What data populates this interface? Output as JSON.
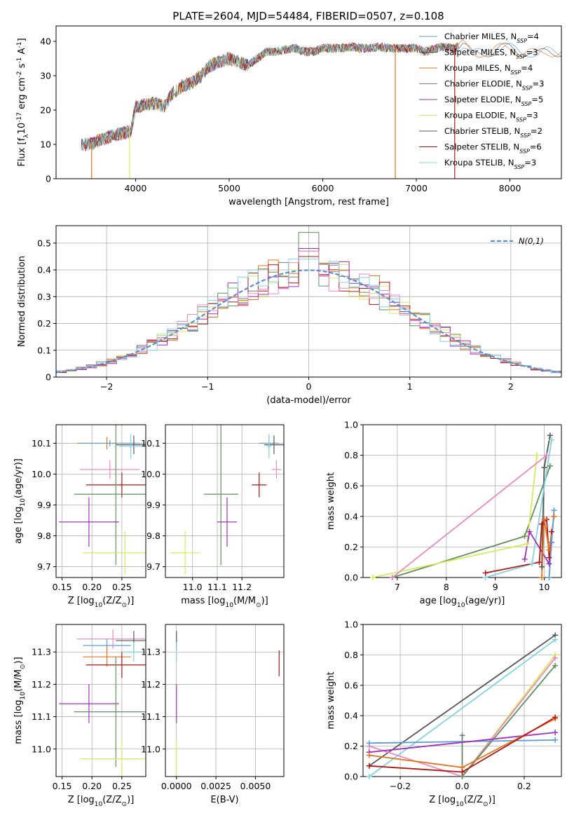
{
  "figure_title": "PLATE=2604, MJD=54484, FIBERID=0507, z=0.108",
  "colors": {
    "Chabrier MILES": "#5b9bd5",
    "Salpeter MILES": "#555555",
    "Kroupa MILES": "#e6731c",
    "Chabrier ELODIE": "#5f8f5f",
    "Salpeter ELODIE": "#a12fbf",
    "Kroupa ELODIE": "#d8ea5a",
    "Chabrier STELIB": "#555555",
    "Salpeter STELIB": "#b31616",
    "Kroupa STELIB": "#7fd4e0",
    "extra": "#e88bc0",
    "gauss": "#5b8fd6"
  },
  "chart_data": [
    {
      "type": "line",
      "xlabel": "wavelength [Angstrom, rest frame]",
      "ylabel": "Flux [f$_\\lambda$10$^{-17}$ erg cm$^{-2}$ s$^{-1}$ A$^{-1}$]",
      "xlim": [
        3150,
        8550
      ],
      "ylim": [
        0,
        44.5
      ],
      "xticks": [
        4000,
        5000,
        6000,
        7000,
        8000
      ],
      "yticks": [
        0,
        10,
        20,
        30,
        40
      ],
      "legend_location": "upper right",
      "legend": [
        {
          "name": "Chabrier MILES",
          "label": "Chabrier MILES, N",
          "sub": "SSP",
          "tail": "=4"
        },
        {
          "name": "Salpeter MILES",
          "label": "Salpeter MILES, N",
          "sub": "SSP",
          "tail": "=3"
        },
        {
          "name": "Kroupa MILES",
          "label": "Kroupa MILES, N",
          "sub": "SSP",
          "tail": "=4"
        },
        {
          "name": "Chabrier ELODIE",
          "label": "Chabrier ELODIE, N",
          "sub": "SSP",
          "tail": "=3"
        },
        {
          "name": "Salpeter ELODIE",
          "label": "Salpeter ELODIE, N",
          "sub": "SSP",
          "tail": "=5"
        },
        {
          "name": "Kroupa ELODIE",
          "label": "Kroupa ELODIE, N",
          "sub": "SSP",
          "tail": "=3"
        },
        {
          "name": "Chabrier STELIB",
          "label": "Chabrier STELIB, N",
          "sub": "SSP",
          "tail": "=2"
        },
        {
          "name": "Salpeter STELIB",
          "label": "Salpeter STELIB, N",
          "sub": "SSP",
          "tail": "=6"
        },
        {
          "name": "Kroupa STELIB",
          "label": "Kroupa STELIB, N",
          "sub": "SSP",
          "tail": "=3"
        }
      ],
      "continuum": [
        [
          3420,
          10
        ],
        [
          3500,
          10
        ],
        [
          3600,
          11
        ],
        [
          3700,
          12
        ],
        [
          3800,
          13
        ],
        [
          3900,
          13.5
        ],
        [
          3950,
          14
        ],
        [
          4000,
          21
        ],
        [
          4100,
          21.5
        ],
        [
          4200,
          22
        ],
        [
          4300,
          21
        ],
        [
          4400,
          25
        ],
        [
          4500,
          27
        ],
        [
          4600,
          28
        ],
        [
          4700,
          30
        ],
        [
          4800,
          33
        ],
        [
          4900,
          34
        ],
        [
          5000,
          35
        ],
        [
          5100,
          34
        ],
        [
          5200,
          33
        ],
        [
          5300,
          35
        ],
        [
          5400,
          37
        ],
        [
          5500,
          37
        ],
        [
          5600,
          37.5
        ],
        [
          5700,
          38
        ],
        [
          5800,
          37
        ],
        [
          5900,
          37
        ],
        [
          6000,
          38
        ],
        [
          6100,
          38
        ],
        [
          6200,
          38
        ],
        [
          6300,
          38.5
        ],
        [
          6400,
          38
        ],
        [
          6500,
          38
        ],
        [
          6600,
          38.5
        ],
        [
          6700,
          38
        ],
        [
          6800,
          38
        ],
        [
          6900,
          38
        ],
        [
          7000,
          38
        ],
        [
          7100,
          37
        ],
        [
          7200,
          38
        ],
        [
          7300,
          38.5
        ],
        [
          7400,
          38
        ],
        [
          7500,
          39
        ],
        [
          7600,
          36
        ],
        [
          7700,
          37
        ],
        [
          7800,
          37
        ],
        [
          7900,
          38
        ],
        [
          8000,
          38
        ],
        [
          8100,
          37
        ],
        [
          8200,
          37
        ],
        [
          8300,
          36
        ],
        [
          8400,
          37
        ],
        [
          8550,
          37
        ]
      ],
      "model_cut": 7430,
      "dips": [
        {
          "series": "Kroupa MILES",
          "x": 3530
        },
        {
          "series": "Kroupa ELODIE",
          "x": 3935
        },
        {
          "series": "Kroupa MILES",
          "x": 6775
        },
        {
          "series": "Salpeter STELIB",
          "x": 7410
        }
      ]
    },
    {
      "type": "step",
      "xlabel": "(data-model)/error",
      "ylabel": "Normed distribution",
      "xlim": [
        -2.5,
        2.5
      ],
      "ylim": [
        0,
        0.565
      ],
      "xticks": [
        -2,
        -1,
        0,
        1,
        2
      ],
      "yticks": [
        0.0,
        0.1,
        0.2,
        0.3,
        0.4,
        0.5
      ],
      "bin_width": 0.1,
      "legend_location": "upper right",
      "gauss_label": "N(0,1)",
      "series": [
        {
          "name": "Chabrier ELODIE",
          "peak": 0.54,
          "noise_seed": 3
        },
        {
          "name": "Kroupa MILES",
          "peak": 0.47,
          "noise_seed": 7
        },
        {
          "name": "Kroupa ELODIE",
          "peak": 0.45,
          "noise_seed": 11
        },
        {
          "name": "Salpeter ELODIE",
          "peak": 0.48,
          "noise_seed": 13
        },
        {
          "name": "Salpeter STELIB",
          "peak": 0.45,
          "noise_seed": 17
        },
        {
          "name": "extra",
          "peak": 0.47,
          "noise_seed": 19
        },
        {
          "name": "Kroupa STELIB",
          "peak": 0.44,
          "noise_seed": 23
        }
      ]
    },
    {
      "type": "errorbar",
      "xlabel": "Z [log$_{10}$(Z/Z$_\\odot$)]",
      "ylabel": "age  [log$_{10}$(age/yr)]",
      "xlim": [
        0.14,
        0.29
      ],
      "ylim": [
        9.665,
        10.16
      ],
      "xticks": [
        0.15,
        0.2,
        0.25
      ],
      "yticks": [
        9.7,
        9.8,
        9.9,
        10.0,
        10.1
      ],
      "points": [
        {
          "series": "Kroupa MILES",
          "x": 0.225,
          "y": 10.1,
          "ex": 0.05,
          "ey": 0.02
        },
        {
          "series": "Chabrier MILES",
          "x": 0.23,
          "y": 10.1,
          "ex": 0.05,
          "ey": 0.01
        },
        {
          "series": "Salpeter MILES",
          "x": 0.27,
          "y": 10.095,
          "ex": 0.03,
          "ey": 0.03
        },
        {
          "series": "Kroupa STELIB",
          "x": 0.265,
          "y": 10.09,
          "ex": 0.02,
          "ey": 0.04
        },
        {
          "series": "extra",
          "x": 0.23,
          "y": 10.015,
          "ex": 0.05,
          "ey": 0.03
        },
        {
          "series": "Salpeter STELIB",
          "x": 0.25,
          "y": 9.965,
          "ex": 0.06,
          "ey": 0.04
        },
        {
          "series": "Chabrier ELODIE",
          "x": 0.24,
          "y": 9.935,
          "ex": 0.07,
          "ey": 0.23
        },
        {
          "series": "Salpeter ELODIE",
          "x": 0.195,
          "y": 9.845,
          "ex": 0.05,
          "ey": 0.08
        },
        {
          "series": "Kroupa ELODIE",
          "x": 0.255,
          "y": 9.745,
          "ex": 0.07,
          "ey": 0.07
        }
      ]
    },
    {
      "type": "errorbar",
      "xlabel": "mass [log$_{10}$(M/M$_\\odot$)]",
      "ylabel": "",
      "xlim": [
        10.89,
        11.37
      ],
      "ylim": [
        9.665,
        10.16
      ],
      "xticks": [
        11.0,
        11.1,
        11.2
      ],
      "yticks": [
        9.7,
        9.8,
        9.9,
        10.0,
        10.1
      ],
      "points": [
        {
          "series": "Kroupa MILES",
          "x": 11.31,
          "y": 10.1,
          "ex": 0.04,
          "ey": 0.02
        },
        {
          "series": "Chabrier MILES",
          "x": 11.31,
          "y": 10.1,
          "ex": 0.04,
          "ey": 0.01
        },
        {
          "series": "Salpeter MILES",
          "x": 11.33,
          "y": 10.095,
          "ex": 0.04,
          "ey": 0.03
        },
        {
          "series": "Kroupa STELIB",
          "x": 11.31,
          "y": 10.09,
          "ex": 0.01,
          "ey": 0.04
        },
        {
          "series": "extra",
          "x": 11.34,
          "y": 10.015,
          "ex": 0.02,
          "ey": 0.03
        },
        {
          "series": "Salpeter STELIB",
          "x": 11.27,
          "y": 9.965,
          "ex": 0.03,
          "ey": 0.04
        },
        {
          "series": "Chabrier ELODIE",
          "x": 11.115,
          "y": 9.935,
          "ex": 0.07,
          "ey": 0.23
        },
        {
          "series": "Salpeter ELODIE",
          "x": 11.14,
          "y": 9.845,
          "ex": 0.04,
          "ey": 0.08
        },
        {
          "series": "Kroupa ELODIE",
          "x": 10.97,
          "y": 9.745,
          "ex": 0.06,
          "ey": 0.07
        }
      ]
    },
    {
      "type": "line",
      "xlabel": "age  [log$_{10}$(age/yr)]",
      "ylabel": "mass weight",
      "xlim": [
        6.3,
        10.35
      ],
      "ylim": [
        0,
        1.0
      ],
      "xticks": [
        7,
        8,
        9,
        10
      ],
      "yticks": [
        0.0,
        0.2,
        0.4,
        0.6,
        0.8,
        1.0
      ],
      "series": [
        {
          "name": "Salpeter MILES",
          "points": [
            [
              9.95,
              0.07
            ],
            [
              10.0,
              0.72
            ],
            [
              10.12,
              0.93
            ]
          ]
        },
        {
          "name": "Chabrier ELODIE",
          "points": [
            [
              6.9,
              0.0
            ],
            [
              9.6,
              0.27
            ],
            [
              10.12,
              0.73
            ]
          ]
        },
        {
          "name": "Kroupa ELODIE",
          "points": [
            [
              6.5,
              0.0
            ],
            [
              9.65,
              0.22
            ],
            [
              9.85,
              0.8
            ]
          ]
        },
        {
          "name": "extra",
          "points": [
            [
              6.9,
              0.0
            ],
            [
              10.05,
              0.8
            ]
          ]
        },
        {
          "name": "Kroupa STELIB",
          "points": [
            [
              8.8,
              0.0
            ],
            [
              9.75,
              0.09
            ],
            [
              10.15,
              0.9
            ]
          ]
        },
        {
          "name": "Salpeter ELODIE",
          "points": [
            [
              9.6,
              0.12
            ],
            [
              9.7,
              0.3
            ],
            [
              10.1,
              0.09
            ],
            [
              10.15,
              0.23
            ]
          ]
        },
        {
          "name": "Salpeter STELIB",
          "points": [
            [
              8.8,
              0.03
            ],
            [
              9.9,
              0.1
            ],
            [
              9.95,
              0.35
            ],
            [
              10.05,
              0.38
            ],
            [
              10.1,
              0.13
            ],
            [
              10.15,
              0.3
            ]
          ]
        },
        {
          "name": "Kroupa MILES",
          "points": [
            [
              9.95,
              0.0
            ],
            [
              10.0,
              0.38
            ],
            [
              10.1,
              0.18
            ],
            [
              10.2,
              0.4
            ]
          ]
        },
        {
          "name": "Chabrier MILES",
          "points": [
            [
              10.1,
              0.0
            ],
            [
              10.15,
              0.23
            ],
            [
              10.2,
              0.44
            ]
          ]
        }
      ]
    },
    {
      "type": "errorbar",
      "xlabel": "Z [log$_{10}$(Z/Z$_\\odot$)]",
      "ylabel": "mass [log$_{10}$(M/M$_\\odot$)]",
      "xlim": [
        0.14,
        0.29
      ],
      "ylim": [
        10.915,
        11.385
      ],
      "xticks": [
        0.15,
        0.2,
        0.25
      ],
      "yticks": [
        11.0,
        11.1,
        11.2,
        11.3
      ],
      "points": [
        {
          "series": "extra",
          "x": 0.235,
          "y": 11.34,
          "ex": 0.06,
          "ey": 0.03
        },
        {
          "series": "Salpeter MILES",
          "x": 0.27,
          "y": 11.335,
          "ex": 0.03,
          "ey": 0.03
        },
        {
          "series": "Chabrier MILES",
          "x": 0.225,
          "y": 11.32,
          "ex": 0.04,
          "ey": 0.02
        },
        {
          "series": "Kroupa STELIB",
          "x": 0.27,
          "y": 11.3,
          "ex": 0.02,
          "ey": 0.03
        },
        {
          "series": "Kroupa MILES",
          "x": 0.225,
          "y": 11.285,
          "ex": 0.04,
          "ey": 0.03
        },
        {
          "series": "Salpeter STELIB",
          "x": 0.25,
          "y": 11.26,
          "ex": 0.06,
          "ey": 0.04
        },
        {
          "series": "Salpeter ELODIE",
          "x": 0.195,
          "y": 11.14,
          "ex": 0.05,
          "ey": 0.06
        },
        {
          "series": "Chabrier ELODIE",
          "x": 0.24,
          "y": 11.115,
          "ex": 0.07,
          "ey": 0.17
        },
        {
          "series": "Kroupa ELODIE",
          "x": 0.25,
          "y": 10.97,
          "ex": 0.07,
          "ey": 0.06
        }
      ]
    },
    {
      "type": "errorbar",
      "xlabel": "E(B-V)",
      "ylabel": "",
      "xlim": [
        -0.0007,
        0.0068
      ],
      "ylim": [
        10.915,
        11.385
      ],
      "xticks": [
        0.0,
        0.0025,
        0.005
      ],
      "xticklabels": [
        "0.0000",
        "0.0025",
        "0.0050"
      ],
      "yticks": [
        11.0,
        11.1,
        11.2,
        11.3
      ],
      "points": [
        {
          "series": "Salpeter MILES",
          "x": 0.0,
          "y": 11.335,
          "ex": 0,
          "ey": 0.03
        },
        {
          "series": "Kroupa STELIB",
          "x": 0.0,
          "y": 11.3,
          "ex": 0,
          "ey": 0.03
        },
        {
          "series": "Salpeter ELODIE",
          "x": 0.0,
          "y": 11.14,
          "ex": 0,
          "ey": 0.06
        },
        {
          "series": "Kroupa ELODIE",
          "x": 0.0,
          "y": 10.97,
          "ex": 0,
          "ey": 0.06
        },
        {
          "series": "Salpeter STELIB",
          "x": 0.0065,
          "y": 11.265,
          "ex": 0,
          "ey": 0.04
        }
      ]
    },
    {
      "type": "line",
      "xlabel": "Z [log$_{10}$(Z/Z$_\\odot$)]",
      "ylabel": "mass weight",
      "xlim": [
        -0.32,
        0.32
      ],
      "ylim": [
        0,
        1.0
      ],
      "xticks": [
        -0.2,
        0.0,
        0.2
      ],
      "yticks": [
        0.0,
        0.2,
        0.4,
        0.6,
        0.8,
        1.0
      ],
      "series": [
        {
          "name": "Salpeter MILES",
          "points": [
            [
              -0.3,
              0.07
            ],
            [
              0.3,
              0.93
            ]
          ]
        },
        {
          "name": "Kroupa STELIB",
          "points": [
            [
              -0.3,
              0.0
            ],
            [
              0.3,
              0.9
            ]
          ]
        },
        {
          "name": "Kroupa ELODIE",
          "points": [
            [
              0.0,
              0.0
            ],
            [
              0.3,
              0.8
            ]
          ]
        },
        {
          "name": "extra",
          "points": [
            [
              -0.3,
              0.2
            ],
            [
              0.0,
              0.0
            ],
            [
              0.3,
              0.78
            ]
          ]
        },
        {
          "name": "Chabrier ELODIE",
          "points": [
            [
              0.0,
              0.27
            ],
            [
              0.0,
              0.0
            ],
            [
              0.3,
              0.73
            ]
          ]
        },
        {
          "name": "Chabrier MILES",
          "points": [
            [
              -0.3,
              0.22
            ],
            [
              0.3,
              0.24
            ]
          ]
        },
        {
          "name": "Salpeter ELODIE",
          "points": [
            [
              -0.3,
              0.16
            ],
            [
              0.3,
              0.29
            ]
          ]
        },
        {
          "name": "Kroupa MILES",
          "points": [
            [
              -0.3,
              0.14
            ],
            [
              0.0,
              0.06
            ],
            [
              0.3,
              0.38
            ]
          ]
        },
        {
          "name": "Salpeter STELIB",
          "points": [
            [
              -0.3,
              0.07
            ],
            [
              0.0,
              0.03
            ],
            [
              0.3,
              0.39
            ]
          ]
        }
      ]
    }
  ]
}
